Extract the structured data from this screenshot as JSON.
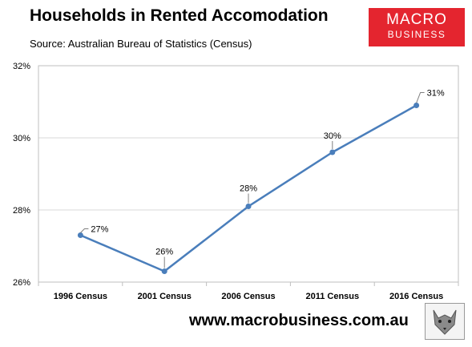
{
  "header": {
    "title": "Households in Rented Accomodation",
    "subtitle": "Source: Australian Bureau of Statistics (Census)"
  },
  "logo": {
    "line1": "MACRO",
    "line2": "BUSINESS",
    "color": "#e4252f"
  },
  "footer": {
    "url": "www.macrobusiness.com.au"
  },
  "colors": {
    "line": "#4a7ebb",
    "plot_border": "#bfbfbf",
    "grid": "#d9d9d9"
  },
  "chart_data": {
    "type": "line",
    "categories": [
      "1996 Census",
      "2001 Census",
      "2006 Census",
      "2011 Census",
      "2016 Census"
    ],
    "values": [
      27.3,
      26.3,
      28.1,
      29.6,
      30.9
    ],
    "data_labels": [
      "27%",
      "26%",
      "28%",
      "30%",
      "31%"
    ],
    "ylim": [
      26,
      32
    ],
    "yticks": [
      26,
      28,
      30,
      32
    ],
    "ytick_labels": [
      "26%",
      "28%",
      "30%",
      "32%"
    ],
    "grid": true
  }
}
